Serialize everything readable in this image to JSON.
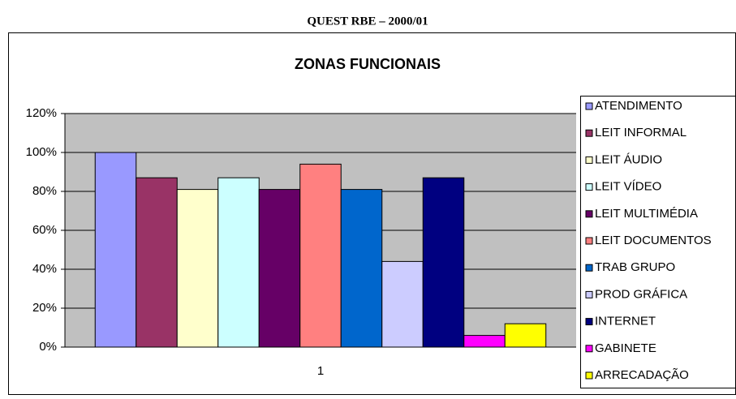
{
  "header": {
    "title": "QUEST RBE – 2000/01"
  },
  "chart_data": {
    "type": "bar",
    "title": "ZONAS FUNCIONAIS",
    "categories": [
      "1"
    ],
    "series": [
      {
        "name": "ATENDIMENTO",
        "color": "#9999ff",
        "values": [
          100
        ]
      },
      {
        "name": "LEIT INFORMAL",
        "color": "#993366",
        "values": [
          87
        ]
      },
      {
        "name": "LEIT ÁUDIO",
        "color": "#ffffcc",
        "values": [
          81
        ]
      },
      {
        "name": "LEIT VÍDEO",
        "color": "#ccffff",
        "values": [
          87
        ]
      },
      {
        "name": "LEIT MULTIMÉDIA",
        "color": "#660066",
        "values": [
          81
        ]
      },
      {
        "name": "LEIT DOCUMENTOS",
        "color": "#ff8080",
        "values": [
          94
        ]
      },
      {
        "name": "TRAB GRUPO",
        "color": "#0066cc",
        "values": [
          81
        ]
      },
      {
        "name": "PROD GRÁFICA",
        "color": "#ccccff",
        "values": [
          44
        ]
      },
      {
        "name": "INTERNET",
        "color": "#000080",
        "values": [
          87
        ]
      },
      {
        "name": "GABINETE",
        "color": "#ff00ff",
        "values": [
          6
        ]
      },
      {
        "name": "ARRECADAÇÃO",
        "color": "#ffff00",
        "values": [
          12
        ]
      }
    ],
    "ylim": [
      0,
      120
    ],
    "yticks": [
      {
        "value": 0,
        "label": "0%"
      },
      {
        "value": 20,
        "label": "20%"
      },
      {
        "value": 40,
        "label": "40%"
      },
      {
        "value": 60,
        "label": "60%"
      },
      {
        "value": 80,
        "label": "80%"
      },
      {
        "value": 100,
        "label": "100%"
      },
      {
        "value": 120,
        "label": "120%"
      }
    ],
    "grid": true,
    "legend": "right",
    "plot_background": "#c0c0c0"
  }
}
